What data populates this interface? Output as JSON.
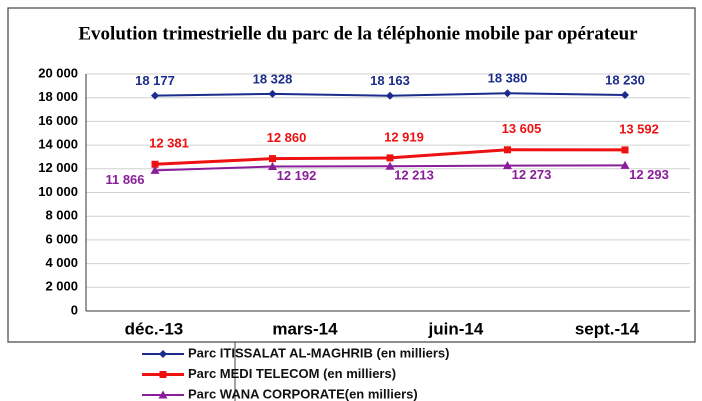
{
  "chart_data": {
    "type": "line",
    "title": "Evolution trimestrielle du parc de la téléphonie mobile par opérateur",
    "categories": [
      "déc.-13",
      "mars-14",
      "juin-14",
      "sept.-14",
      null
    ],
    "series": [
      {
        "name": "Parc ITISSALAT AL-MAGHRIB (en milliers)",
        "color": "#1c2c8c",
        "marker": "diamond",
        "values": [
          18177,
          18328,
          18163,
          18380,
          18230
        ],
        "value_labels": [
          "18 177",
          "18 328",
          "18 163",
          "18 380",
          "18 230"
        ]
      },
      {
        "name": "Parc MEDI TELECOM (en milliers)",
        "color": "#ee1111",
        "marker": "square",
        "values": [
          12381,
          12860,
          12919,
          13605,
          13592
        ],
        "value_labels": [
          "12 381",
          "12 860",
          "12 919",
          "13 605",
          "13 592"
        ]
      },
      {
        "name": "Parc WANA CORPORATE(en milliers)",
        "color": "#8a1e9a",
        "marker": "triangle",
        "values": [
          11866,
          12192,
          12213,
          12273,
          12293
        ],
        "value_labels": [
          "11 866",
          "12 192",
          "12 213",
          "12 273",
          "12 293"
        ]
      }
    ],
    "ylim": [
      0,
      20000
    ],
    "yticks": [
      {
        "value": 0,
        "label": "0"
      },
      {
        "value": 2000,
        "label": "2 000"
      },
      {
        "value": 4000,
        "label": "4 000"
      },
      {
        "value": 6000,
        "label": "6 000"
      },
      {
        "value": 8000,
        "label": "8 000"
      },
      {
        "value": 10000,
        "label": "10 000"
      },
      {
        "value": 12000,
        "label": "12 000"
      },
      {
        "value": 14000,
        "label": "14 000"
      },
      {
        "value": 16000,
        "label": "16 000"
      },
      {
        "value": 18000,
        "label": "18 000"
      },
      {
        "value": 20000,
        "label": "20 000"
      }
    ],
    "grid": true,
    "legend": "bottom"
  }
}
